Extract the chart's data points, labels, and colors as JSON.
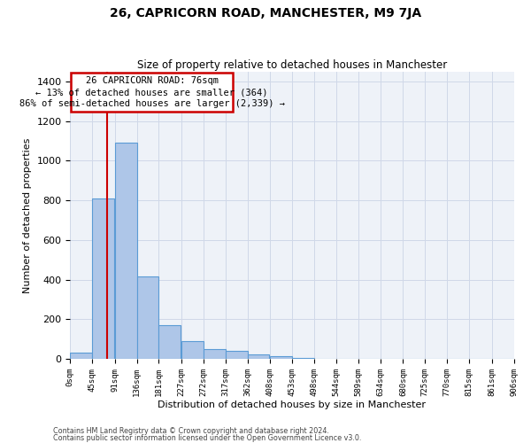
{
  "title": "26, CAPRICORN ROAD, MANCHESTER, M9 7JA",
  "subtitle": "Size of property relative to detached houses in Manchester",
  "xlabel": "Distribution of detached houses by size in Manchester",
  "ylabel": "Number of detached properties",
  "footnote1": "Contains HM Land Registry data © Crown copyright and database right 2024.",
  "footnote2": "Contains public sector information licensed under the Open Government Licence v3.0.",
  "bar_values": [
    30,
    810,
    1090,
    415,
    170,
    90,
    50,
    38,
    20,
    12,
    5,
    2,
    1,
    0,
    0,
    0,
    0,
    0,
    0,
    0
  ],
  "bin_edges": [
    0,
    45,
    91,
    136,
    181,
    227,
    272,
    317,
    362,
    408,
    453,
    498,
    544,
    589,
    634,
    680,
    725,
    770,
    815,
    861,
    906
  ],
  "tick_labels": [
    "0sqm",
    "45sqm",
    "91sqm",
    "136sqm",
    "181sqm",
    "227sqm",
    "272sqm",
    "317sqm",
    "362sqm",
    "408sqm",
    "453sqm",
    "498sqm",
    "544sqm",
    "589sqm",
    "634sqm",
    "680sqm",
    "725sqm",
    "770sqm",
    "815sqm",
    "861sqm",
    "906sqm"
  ],
  "property_size": 76,
  "property_label": "26 CAPRICORN ROAD: 76sqm",
  "annotation_line1": "← 13% of detached houses are smaller (364)",
  "annotation_line2": "86% of semi-detached houses are larger (2,339) →",
  "vline_x": 76,
  "bar_color": "#aec6e8",
  "bar_edge_color": "#5b9bd5",
  "vline_color": "#cc0000",
  "grid_color": "#d0d8e8",
  "bg_color": "#eef2f8",
  "annotation_box_color": "#cc0000",
  "ylim": [
    0,
    1450
  ],
  "yticks": [
    0,
    200,
    400,
    600,
    800,
    1000,
    1200,
    1400
  ]
}
